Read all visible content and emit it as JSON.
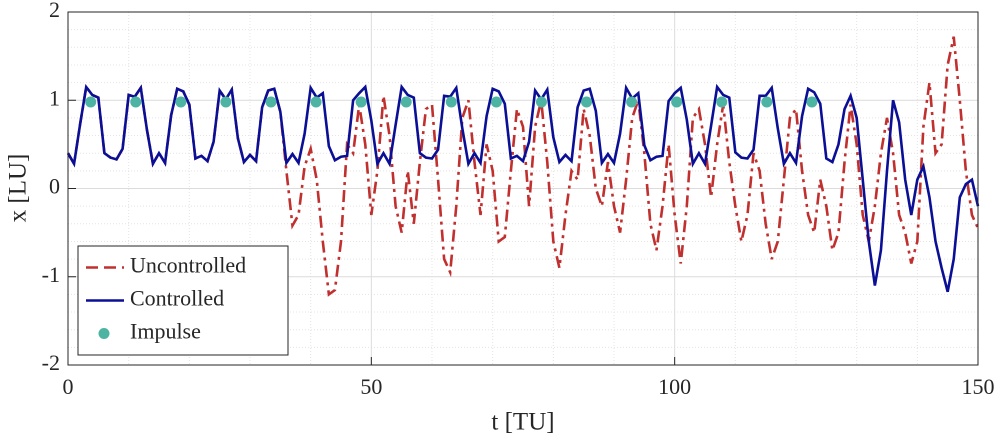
{
  "chart_data": {
    "type": "line",
    "xlabel": "t [TU]",
    "ylabel": "x [LU]",
    "xlim": [
      0,
      150
    ],
    "ylim": [
      -2,
      2
    ],
    "xticks": [
      0,
      50,
      100,
      150
    ],
    "yticks": [
      -2,
      -1,
      0,
      1,
      2
    ],
    "xminorticks": [
      10,
      20,
      30,
      40,
      60,
      70,
      80,
      90,
      110,
      120,
      130,
      140
    ],
    "yminorticks": [
      -1.8,
      -1.6,
      -1.4,
      -1.2,
      -0.8,
      -0.6,
      -0.4,
      -0.2,
      0.2,
      0.4,
      0.6,
      0.8,
      1.2,
      1.4,
      1.6,
      1.8
    ],
    "grid": true,
    "legend": "lower left",
    "x": [
      0,
      1,
      2,
      3,
      4,
      5,
      6,
      7,
      8,
      9,
      10,
      11,
      12,
      13,
      14,
      15,
      16,
      17,
      18,
      19,
      20,
      21,
      22,
      23,
      24,
      25,
      26,
      27,
      28,
      29,
      30,
      31,
      32,
      33,
      34,
      35,
      36,
      37,
      38,
      39,
      40,
      41,
      42,
      43,
      44,
      45,
      46,
      47,
      48,
      49,
      50,
      51,
      52,
      53,
      54,
      55,
      56,
      57,
      58,
      59,
      60,
      61,
      62,
      63,
      64,
      65,
      66,
      67,
      68,
      69,
      70,
      71,
      72,
      73,
      74,
      75,
      76,
      77,
      78,
      79,
      80,
      81,
      82,
      83,
      84,
      85,
      86,
      87,
      88,
      89,
      90,
      91,
      92,
      93,
      94,
      95,
      96,
      97,
      98,
      99,
      100,
      101,
      102,
      103,
      104,
      105,
      106,
      107,
      108,
      109,
      110,
      111,
      112,
      113,
      114,
      115,
      116,
      117,
      118,
      119,
      120,
      121,
      122,
      123,
      124,
      125,
      126,
      127,
      128,
      129,
      130,
      131,
      132,
      133,
      134,
      135,
      136,
      137,
      138,
      139,
      140,
      141,
      142,
      143,
      144,
      145,
      146,
      147,
      148,
      149,
      150
    ],
    "series": [
      {
        "name": "Uncontrolled",
        "color": "#c0302e",
        "dashed": true,
        "values": [
          0.4,
          0.28,
          0.73,
          1.15,
          1.06,
          1.03,
          0.4,
          0.35,
          0.33,
          0.45,
          1.06,
          1.04,
          1.14,
          0.67,
          0.28,
          0.4,
          0.29,
          0.83,
          1.13,
          1.1,
          0.95,
          0.34,
          0.37,
          0.31,
          0.53,
          1.11,
          1.01,
          1.12,
          0.57,
          0.3,
          0.38,
          0.31,
          0.92,
          1.11,
          1.13,
          0.87,
          0.2,
          -0.42,
          -0.3,
          0.25,
          0.45,
          0.1,
          -0.6,
          -1.2,
          -1.15,
          -0.6,
          0.5,
          0.4,
          0.95,
          0.5,
          -0.3,
          0.2,
          1.05,
          0.6,
          -0.2,
          -0.5,
          0.2,
          -0.4,
          0.3,
          0.9,
          0.95,
          0.1,
          -0.8,
          -0.95,
          -0.2,
          0.8,
          1.0,
          0.3,
          -0.3,
          0.5,
          0.2,
          -0.6,
          -0.55,
          0.2,
          0.9,
          0.7,
          -0.2,
          0.7,
          1.0,
          0.3,
          -0.6,
          -0.9,
          -0.3,
          0.2,
          0.1,
          0.9,
          0.6,
          0.0,
          -0.2,
          0.3,
          -0.2,
          -0.5,
          0.1,
          0.8,
          1.0,
          0.4,
          -0.4,
          -0.7,
          -0.2,
          0.5,
          -0.3,
          -0.85,
          -0.2,
          0.8,
          0.9,
          0.5,
          -0.1,
          0.5,
          0.95,
          0.3,
          -0.2,
          -0.6,
          -0.3,
          0.4,
          0.2,
          -0.4,
          -0.8,
          -0.6,
          0.1,
          0.8,
          0.9,
          0.2,
          -0.3,
          -0.5,
          0.1,
          -0.2,
          -0.7,
          -0.5,
          0.3,
          0.95,
          0.5,
          -0.3,
          -0.6,
          -0.2,
          0.4,
          0.8,
          0.4,
          -0.3,
          -0.5,
          -0.85,
          -0.6,
          0.7,
          1.2,
          0.4,
          0.5,
          1.4,
          1.72,
          1.0,
          0.2,
          -0.3,
          -0.45
        ]
      },
      {
        "name": "Controlled",
        "color": "#0a0f96",
        "dashed": false,
        "values": [
          0.4,
          0.28,
          0.73,
          1.15,
          1.06,
          1.03,
          0.4,
          0.35,
          0.33,
          0.45,
          1.06,
          1.04,
          1.14,
          0.67,
          0.28,
          0.4,
          0.29,
          0.83,
          1.13,
          1.1,
          0.95,
          0.34,
          0.37,
          0.31,
          0.53,
          1.11,
          1.01,
          1.12,
          0.57,
          0.3,
          0.38,
          0.31,
          0.92,
          1.11,
          1.13,
          0.87,
          0.29,
          0.39,
          0.29,
          0.62,
          1.14,
          1.03,
          1.08,
          0.48,
          0.32,
          0.36,
          0.37,
          1.0,
          1.08,
          1.15,
          0.77,
          0.28,
          0.4,
          0.28,
          0.72,
          1.15,
          1.06,
          1.03,
          0.4,
          0.35,
          0.34,
          0.44,
          1.05,
          1.04,
          1.14,
          0.68,
          0.28,
          0.4,
          0.29,
          0.82,
          1.13,
          1.1,
          0.96,
          0.34,
          0.37,
          0.31,
          0.53,
          1.11,
          1.01,
          1.12,
          0.58,
          0.3,
          0.38,
          0.31,
          0.92,
          1.11,
          1.13,
          0.88,
          0.29,
          0.39,
          0.29,
          0.62,
          1.14,
          1.02,
          1.08,
          0.49,
          0.32,
          0.36,
          0.37,
          0.99,
          1.08,
          1.14,
          0.78,
          0.28,
          0.4,
          0.28,
          0.71,
          1.15,
          1.06,
          1.03,
          0.41,
          0.35,
          0.34,
          0.44,
          1.05,
          1.05,
          1.14,
          0.68,
          0.28,
          0.4,
          0.29,
          0.82,
          1.13,
          1.09,
          0.96,
          0.34,
          0.3,
          0.5,
          0.9,
          1.05,
          0.8,
          0.1,
          -0.6,
          -1.1,
          -0.7,
          0.2,
          1.0,
          0.75,
          0.1,
          -0.3,
          0.1,
          0.25,
          -0.1,
          -0.6,
          -0.9,
          -1.17,
          -0.8,
          -0.1,
          0.05,
          0.1,
          -0.2
        ]
      },
      {
        "name": "Impulse",
        "color": "#4db3a2",
        "type": "scatter",
        "x": [
          3.74,
          11.17,
          18.6,
          26.03,
          33.46,
          40.89,
          48.32,
          55.75,
          63.18,
          70.61,
          78.04,
          85.47,
          92.9,
          100.33,
          107.76,
          115.19,
          122.62
        ],
        "values": [
          0.98,
          0.98,
          0.98,
          0.98,
          0.98,
          0.98,
          0.98,
          0.98,
          0.98,
          0.98,
          0.98,
          0.98,
          0.98,
          0.98,
          0.98,
          0.98,
          0.98
        ]
      }
    ]
  }
}
